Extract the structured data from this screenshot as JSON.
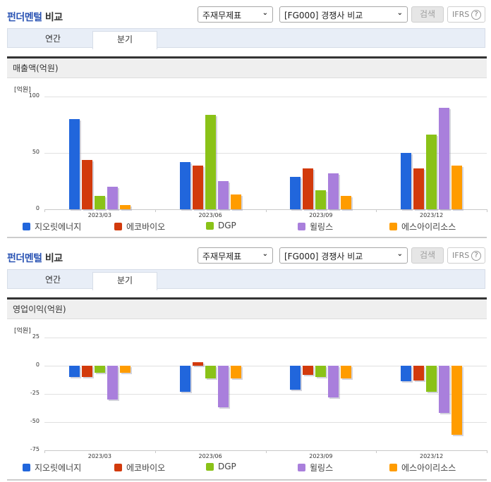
{
  "sections": [
    {
      "title_blue": "펀더멘털",
      "title_dark": "비교",
      "select1": "주재무제표",
      "select2": "[FG000] 경쟁사 비교",
      "search_label": "검색",
      "ifrs_label": "IFRS",
      "help_glyph": "?",
      "tabs": [
        {
          "label": "연간",
          "active": false
        },
        {
          "label": "분기",
          "active": true
        }
      ],
      "chart_title": "매출액(억원)",
      "unit_label": "[억원]"
    },
    {
      "title_blue": "펀더멘털",
      "title_dark": "비교",
      "select1": "주재무제표",
      "select2": "[FG000] 경쟁사 비교",
      "search_label": "검색",
      "ifrs_label": "IFRS",
      "help_glyph": "?",
      "tabs": [
        {
          "label": "연간",
          "active": false
        },
        {
          "label": "분기",
          "active": true
        }
      ],
      "chart_title": "영업이익(억원)",
      "unit_label": "[억원]"
    }
  ],
  "legend": [
    {
      "name": "지오릿에너지",
      "color": "#2166dc"
    },
    {
      "name": "에코바이오",
      "color": "#d23a0c"
    },
    {
      "name": "DGP",
      "color": "#8ac218"
    },
    {
      "name": "윌링스",
      "color": "#a97fdc"
    },
    {
      "name": "에스아이리소스",
      "color": "#ff9c00"
    }
  ],
  "chart_data": [
    {
      "type": "bar",
      "title": "매출액(억원)",
      "xlabel": "",
      "ylabel": "[억원]",
      "ylim": [
        0,
        100
      ],
      "yticks": [
        100,
        50,
        0
      ],
      "grid": true,
      "legend_position": "bottom",
      "categories": [
        "2023/03",
        "2023/06",
        "2023/09",
        "2023/12"
      ],
      "series": [
        {
          "name": "지오릿에너지",
          "values": [
            80,
            42,
            29,
            50
          ]
        },
        {
          "name": "에코바이오",
          "values": [
            44,
            39,
            36,
            36
          ]
        },
        {
          "name": "DGP",
          "values": [
            12,
            84,
            17,
            66
          ]
        },
        {
          "name": "윌링스",
          "values": [
            20,
            25,
            32,
            90
          ]
        },
        {
          "name": "에스아이리소스",
          "values": [
            4,
            13,
            12,
            39
          ]
        }
      ]
    },
    {
      "type": "bar",
      "title": "영업이익(억원)",
      "xlabel": "",
      "ylabel": "[억원]",
      "ylim": [
        -75,
        25
      ],
      "yticks": [
        25,
        0,
        -25,
        -50,
        -75
      ],
      "grid": true,
      "legend_position": "bottom",
      "categories": [
        "2023/03",
        "2023/06",
        "2023/09",
        "2023/12"
      ],
      "series": [
        {
          "name": "지오릿에너지",
          "values": [
            -10,
            -23,
            -21,
            -14
          ]
        },
        {
          "name": "에코바이오",
          "values": [
            -10,
            3,
            -8,
            -13
          ]
        },
        {
          "name": "DGP",
          "values": [
            -6,
            -11,
            -10,
            -23
          ]
        },
        {
          "name": "윌링스",
          "values": [
            -30,
            -37,
            -28,
            -42
          ]
        },
        {
          "name": "에스아이리소스",
          "values": [
            -6,
            -11,
            -11,
            -61
          ]
        }
      ]
    }
  ]
}
